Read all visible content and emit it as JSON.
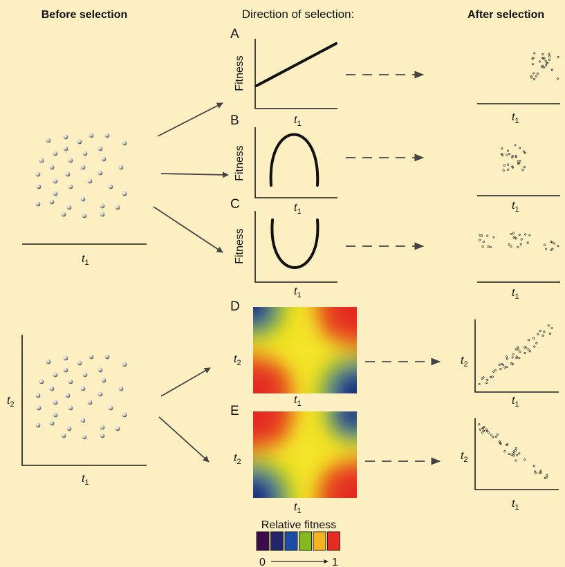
{
  "headers": {
    "before": "Before selection",
    "direction": "Direction of selection:",
    "after": "After selection"
  },
  "axis_labels": {
    "fitness": "Fitness",
    "t": "t",
    "sub1": "1",
    "sub2": "2"
  },
  "panels": [
    {
      "letter": "A",
      "shape": "directional"
    },
    {
      "letter": "B",
      "shape": "stabilizing"
    },
    {
      "letter": "C",
      "shape": "disruptive"
    },
    {
      "letter": "D",
      "shape": "correlational-positive"
    },
    {
      "letter": "E",
      "shape": "correlational-negative"
    }
  ],
  "legend": {
    "title": "Relative fitness",
    "min": "0",
    "max": "1",
    "colors": [
      "#3d0a4a",
      "#24246a",
      "#1a4ea6",
      "#86b820",
      "#f4b21e",
      "#e52b22"
    ]
  },
  "colors": {
    "background": "#fcf0c2",
    "axis": "#1a1a1a",
    "arrow": "#444444",
    "curve": "#111111"
  }
}
